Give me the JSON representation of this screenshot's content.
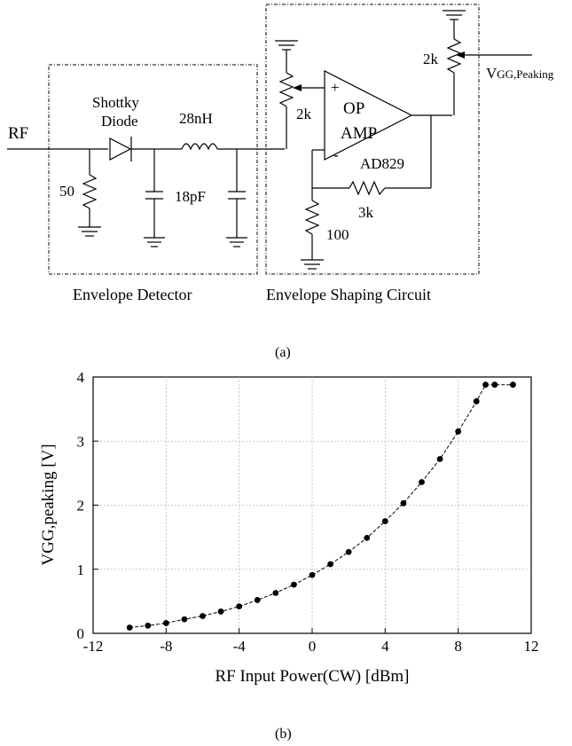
{
  "circuit": {
    "rf_label": "RF",
    "diode_label_1": "Shottky",
    "diode_label_2": "Diode",
    "inductor_label": "28nH",
    "resistor_50_label": "50",
    "cap_label": "18pF",
    "pot_input_label": "2k",
    "pot_output_label": "2k",
    "opamp_label_1": "OP",
    "opamp_label_2": "AMP",
    "opamp_part_label": "AD829",
    "plus_label": "+",
    "minus_label": "-",
    "feedback_label": "3k",
    "ground_resistor_label": "100",
    "vgg_main": "V",
    "vgg_sub": "GG,Peaking",
    "box1_caption": "Envelope Detector",
    "box2_caption": "Envelope Shaping Circuit",
    "caption": "(a)"
  },
  "caption_b": "(b)",
  "chart_data": {
    "type": "line",
    "xlabel": "RF Input Power(CW) [dBm]",
    "ylabel": "VGG,peaking [V]",
    "xlim": [
      -12,
      12
    ],
    "ylim": [
      0,
      4
    ],
    "xticks": [
      "-12",
      "-8",
      "-4",
      "0",
      "4",
      "8",
      "12"
    ],
    "yticks": [
      "0",
      "1",
      "2",
      "3",
      "4"
    ],
    "grid": true,
    "series": [
      {
        "x": [
          -10,
          -9,
          -8,
          -7,
          -6,
          -5,
          -4,
          -3,
          -2,
          -1,
          0,
          1,
          2,
          3,
          4,
          5,
          6,
          7,
          8,
          9,
          9.5,
          10,
          11
        ],
        "y": [
          0.09,
          0.12,
          0.16,
          0.22,
          0.27,
          0.34,
          0.42,
          0.52,
          0.63,
          0.76,
          0.91,
          1.08,
          1.27,
          1.49,
          1.75,
          2.03,
          2.36,
          2.72,
          3.15,
          3.62,
          3.88,
          3.88,
          3.88
        ]
      }
    ]
  }
}
